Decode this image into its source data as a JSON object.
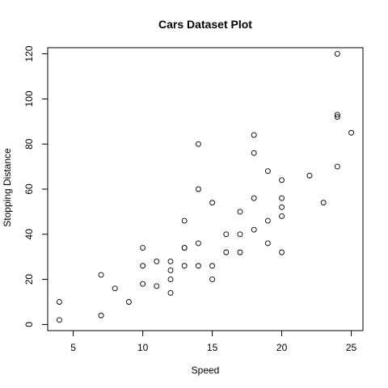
{
  "chart_data": {
    "type": "scatter",
    "title": "Cars Dataset Plot",
    "xlabel": "Speed",
    "ylabel": "Stopping Distance",
    "xlim": [
      3.16,
      25.84
    ],
    "ylim": [
      -2.72,
      122.72
    ],
    "xticks": [
      5,
      10,
      15,
      20,
      25
    ],
    "yticks": [
      0,
      20,
      40,
      60,
      80,
      100,
      120
    ],
    "xtick_labels": [
      "5",
      "10",
      "15",
      "20",
      "25"
    ],
    "ytick_labels": [
      "0",
      "20",
      "40",
      "60",
      "80",
      "100",
      "120"
    ],
    "grid": false,
    "marker": "open-circle",
    "points": [
      {
        "x": 4,
        "y": 2
      },
      {
        "x": 4,
        "y": 10
      },
      {
        "x": 7,
        "y": 4
      },
      {
        "x": 7,
        "y": 22
      },
      {
        "x": 8,
        "y": 16
      },
      {
        "x": 9,
        "y": 10
      },
      {
        "x": 10,
        "y": 18
      },
      {
        "x": 10,
        "y": 26
      },
      {
        "x": 10,
        "y": 34
      },
      {
        "x": 11,
        "y": 17
      },
      {
        "x": 11,
        "y": 28
      },
      {
        "x": 12,
        "y": 14
      },
      {
        "x": 12,
        "y": 20
      },
      {
        "x": 12,
        "y": 24
      },
      {
        "x": 12,
        "y": 28
      },
      {
        "x": 13,
        "y": 26
      },
      {
        "x": 13,
        "y": 34
      },
      {
        "x": 13,
        "y": 34
      },
      {
        "x": 13,
        "y": 46
      },
      {
        "x": 14,
        "y": 26
      },
      {
        "x": 14,
        "y": 36
      },
      {
        "x": 14,
        "y": 60
      },
      {
        "x": 14,
        "y": 80
      },
      {
        "x": 15,
        "y": 20
      },
      {
        "x": 15,
        "y": 26
      },
      {
        "x": 15,
        "y": 54
      },
      {
        "x": 16,
        "y": 32
      },
      {
        "x": 16,
        "y": 40
      },
      {
        "x": 17,
        "y": 32
      },
      {
        "x": 17,
        "y": 40
      },
      {
        "x": 17,
        "y": 50
      },
      {
        "x": 18,
        "y": 42
      },
      {
        "x": 18,
        "y": 56
      },
      {
        "x": 18,
        "y": 76
      },
      {
        "x": 18,
        "y": 84
      },
      {
        "x": 19,
        "y": 36
      },
      {
        "x": 19,
        "y": 46
      },
      {
        "x": 19,
        "y": 68
      },
      {
        "x": 20,
        "y": 32
      },
      {
        "x": 20,
        "y": 48
      },
      {
        "x": 20,
        "y": 52
      },
      {
        "x": 20,
        "y": 56
      },
      {
        "x": 20,
        "y": 64
      },
      {
        "x": 22,
        "y": 66
      },
      {
        "x": 23,
        "y": 54
      },
      {
        "x": 24,
        "y": 70
      },
      {
        "x": 24,
        "y": 92
      },
      {
        "x": 24,
        "y": 93
      },
      {
        "x": 24,
        "y": 120
      },
      {
        "x": 25,
        "y": 85
      }
    ]
  }
}
